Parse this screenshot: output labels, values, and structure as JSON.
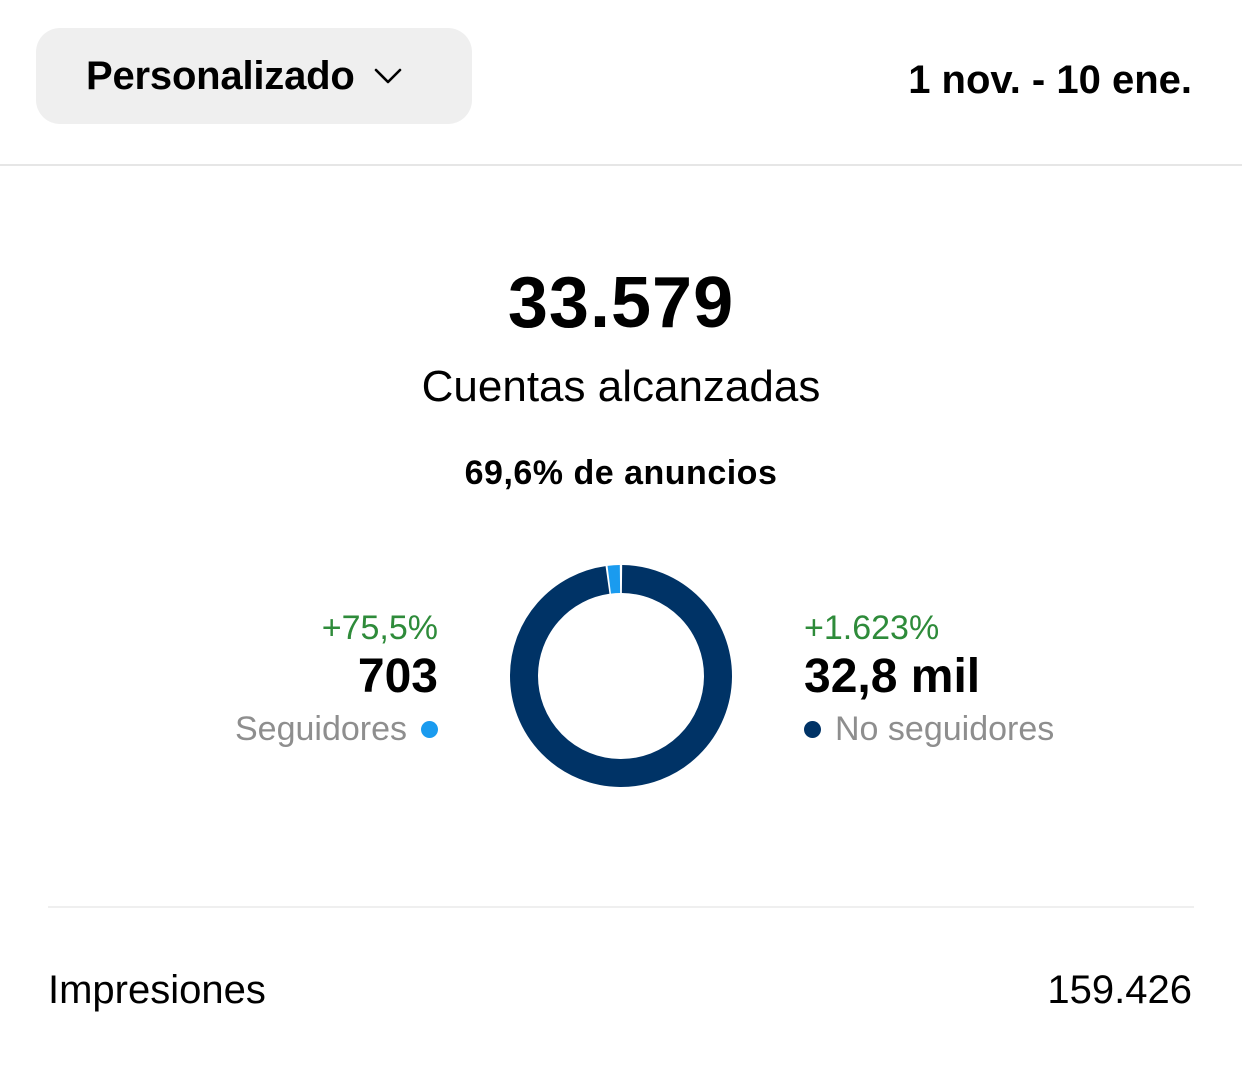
{
  "header": {
    "range_selector": "Personalizado",
    "date_range": "1 nov. - 10 ene."
  },
  "summary": {
    "total": "33.579",
    "label": "Cuentas alcanzadas",
    "ads_share": "69,6% de anuncios"
  },
  "breakdown": {
    "followers": {
      "delta": "+75,5%",
      "value": "703",
      "label": "Seguidores",
      "color": "#1a9bef",
      "fraction": 0.021
    },
    "non_followers": {
      "delta": "+1.623%",
      "value": "32,8 mil",
      "label": "No seguidores",
      "color": "#003366",
      "fraction": 0.979
    }
  },
  "metrics": {
    "impressions_label": "Impresiones",
    "impressions_value": "159.426"
  },
  "icons": {
    "range_chevron": "chevron-down-icon"
  }
}
